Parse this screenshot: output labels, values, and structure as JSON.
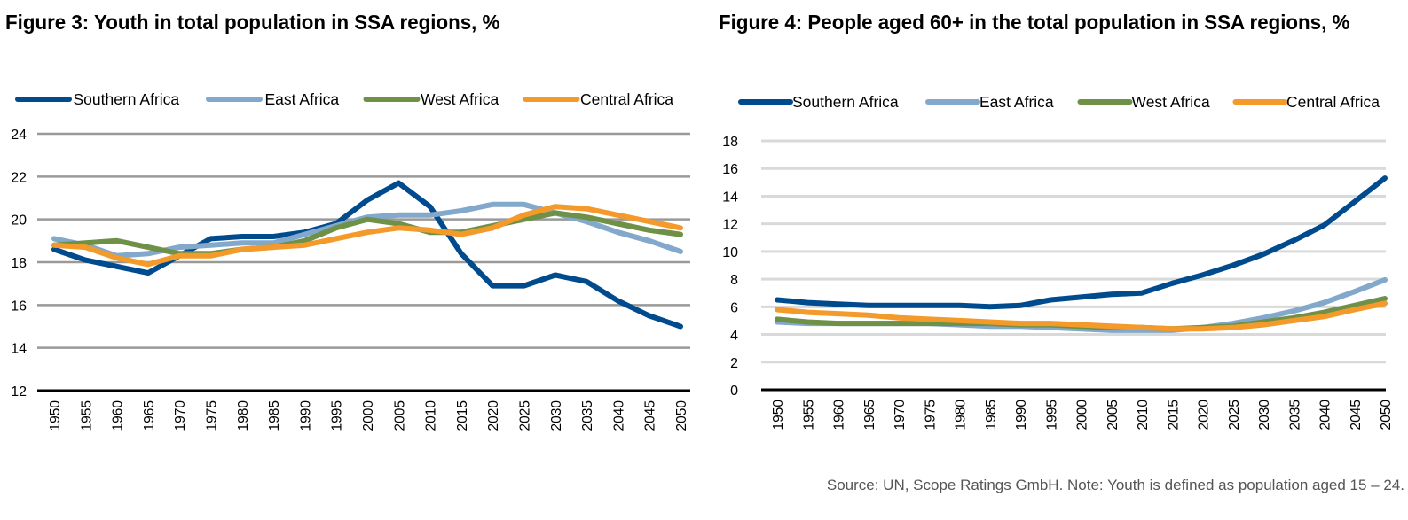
{
  "chart_data": [
    {
      "type": "line",
      "id": "fig3",
      "title": "Figure 3: Youth in total population in SSA regions, %",
      "xlabel": "",
      "ylabel": "",
      "ylim": [
        12,
        24
      ],
      "yticks": [
        12,
        14,
        16,
        18,
        20,
        22,
        24
      ],
      "grid": true,
      "legend": "top",
      "categories": [
        "1950",
        "1955",
        "1960",
        "1965",
        "1970",
        "1975",
        "1980",
        "1985",
        "1990",
        "1995",
        "2000",
        "2005",
        "2010",
        "2015",
        "2020",
        "2025",
        "2030",
        "2035",
        "2040",
        "2045",
        "2050"
      ],
      "series": [
        {
          "name": "Southern Africa",
          "color": "#004b8d",
          "values": [
            18.6,
            18.1,
            17.8,
            17.5,
            18.3,
            19.1,
            19.2,
            19.2,
            19.4,
            19.8,
            20.9,
            21.7,
            20.6,
            18.4,
            16.9,
            16.9,
            17.4,
            17.1,
            16.2,
            15.5,
            15.0
          ]
        },
        {
          "name": "East Africa",
          "color": "#82a8cb",
          "values": [
            19.1,
            18.8,
            18.3,
            18.4,
            18.7,
            18.8,
            18.9,
            18.9,
            19.3,
            19.7,
            20.1,
            20.2,
            20.2,
            20.4,
            20.7,
            20.7,
            20.3,
            19.9,
            19.4,
            19.0,
            18.5
          ]
        },
        {
          "name": "West Africa",
          "color": "#6e9147",
          "values": [
            18.8,
            18.9,
            19.0,
            18.7,
            18.4,
            18.4,
            18.6,
            18.7,
            19.0,
            19.6,
            20.0,
            19.8,
            19.4,
            19.4,
            19.7,
            20.0,
            20.3,
            20.1,
            19.8,
            19.5,
            19.3
          ]
        },
        {
          "name": "Central Africa",
          "color": "#f39a2b",
          "values": [
            18.8,
            18.7,
            18.2,
            17.9,
            18.3,
            18.3,
            18.6,
            18.7,
            18.8,
            19.1,
            19.4,
            19.6,
            19.5,
            19.3,
            19.6,
            20.2,
            20.6,
            20.5,
            20.2,
            19.9,
            19.6
          ]
        }
      ]
    },
    {
      "type": "line",
      "id": "fig4",
      "title": "Figure 4: People aged 60+ in the total population in SSA regions, %",
      "xlabel": "",
      "ylabel": "",
      "ylim": [
        0,
        18
      ],
      "yticks": [
        0,
        2,
        4,
        6,
        8,
        10,
        12,
        14,
        16,
        18
      ],
      "grid": true,
      "legend": "top",
      "categories": [
        "1950",
        "1955",
        "1960",
        "1965",
        "1970",
        "1975",
        "1980",
        "1985",
        "1990",
        "1995",
        "2000",
        "2005",
        "2010",
        "2015",
        "2020",
        "2025",
        "2030",
        "2035",
        "2040",
        "2045",
        "2050"
      ],
      "series": [
        {
          "name": "Southern Africa",
          "color": "#004b8d",
          "values": [
            6.5,
            6.3,
            6.2,
            6.1,
            6.1,
            6.1,
            6.1,
            6.0,
            6.1,
            6.5,
            6.7,
            6.9,
            7.0,
            7.7,
            8.3,
            9.0,
            9.8,
            10.8,
            11.9,
            13.6,
            15.3
          ]
        },
        {
          "name": "East Africa",
          "color": "#82a8cb",
          "values": [
            4.9,
            4.8,
            4.8,
            4.8,
            4.8,
            4.8,
            4.7,
            4.6,
            4.6,
            4.5,
            4.4,
            4.3,
            4.3,
            4.3,
            4.5,
            4.8,
            5.2,
            5.7,
            6.3,
            7.1,
            7.95
          ]
        },
        {
          "name": "West Africa",
          "color": "#6e9147",
          "values": [
            5.1,
            4.9,
            4.8,
            4.8,
            4.8,
            4.8,
            4.8,
            4.8,
            4.7,
            4.7,
            4.6,
            4.5,
            4.5,
            4.4,
            4.5,
            4.6,
            4.9,
            5.2,
            5.6,
            6.1,
            6.6
          ]
        },
        {
          "name": "Central Africa",
          "color": "#f39a2b",
          "values": [
            5.8,
            5.6,
            5.5,
            5.4,
            5.2,
            5.1,
            5.0,
            4.9,
            4.8,
            4.8,
            4.7,
            4.6,
            4.5,
            4.4,
            4.4,
            4.5,
            4.7,
            5.0,
            5.3,
            5.8,
            6.25
          ]
        }
      ]
    }
  ],
  "footer": {
    "source_note": "Source: UN, Scope Ratings GmbH. Note: Youth is defined as population aged 15 – 24."
  }
}
